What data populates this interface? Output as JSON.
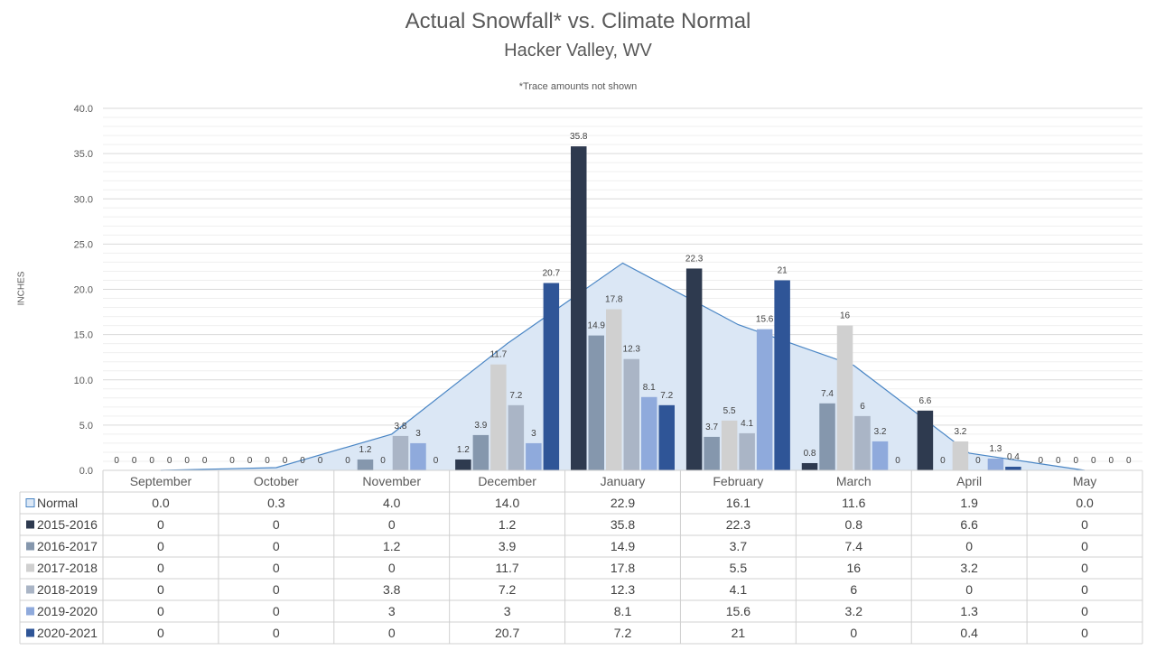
{
  "chart_data": {
    "type": "bar",
    "title": "Actual Snowfall* vs. Climate Normal",
    "subtitle": "Hacker Valley, WV",
    "note": "*Trace amounts not shown",
    "ylabel": "INCHES",
    "ylim": [
      0,
      40
    ],
    "yticks": [
      "0.0",
      "5.0",
      "10.0",
      "15.0",
      "20.0",
      "25.0",
      "30.0",
      "35.0",
      "40.0"
    ],
    "categories": [
      "September",
      "October",
      "November",
      "December",
      "January",
      "February",
      "March",
      "April",
      "May"
    ],
    "normal": {
      "name": "Normal",
      "type": "area",
      "color": "#dbe7f5",
      "line_color": "#4a86c5",
      "values": [
        0.0,
        0.3,
        4.0,
        14.0,
        22.9,
        16.1,
        11.6,
        1.9,
        0.0
      ],
      "labels": [
        "0.0",
        "0.3",
        "4.0",
        "14.0",
        "22.9",
        "16.1",
        "11.6",
        "1.9",
        "0.0"
      ]
    },
    "series": [
      {
        "name": "2015-2016",
        "color": "#2e3a4f",
        "values": [
          0,
          0,
          0,
          1.2,
          35.8,
          22.3,
          0.8,
          6.6,
          0
        ],
        "labels": [
          "0",
          "0",
          "0",
          "1.2",
          "35.8",
          "22.3",
          "0.8",
          "6.6",
          "0"
        ]
      },
      {
        "name": "2016-2017",
        "color": "#8597ad",
        "values": [
          0,
          0,
          1.2,
          3.9,
          14.9,
          3.7,
          7.4,
          0,
          0
        ],
        "labels": [
          "0",
          "0",
          "1.2",
          "3.9",
          "14.9",
          "3.7",
          "7.4",
          "0",
          "0"
        ]
      },
      {
        "name": "2017-2018",
        "color": "#d0d0d0",
        "values": [
          0,
          0,
          0,
          11.7,
          17.8,
          5.5,
          16,
          3.2,
          0
        ],
        "labels": [
          "0",
          "0",
          "0",
          "11.7",
          "17.8",
          "5.5",
          "16",
          "3.2",
          "0"
        ]
      },
      {
        "name": "2018-2019",
        "color": "#aab5c6",
        "values": [
          0,
          0,
          3.8,
          7.2,
          12.3,
          4.1,
          6,
          0,
          0
        ],
        "labels": [
          "0",
          "0",
          "3.8",
          "7.2",
          "12.3",
          "4.1",
          "6",
          "0",
          "0"
        ]
      },
      {
        "name": "2019-2020",
        "color": "#8faadc",
        "values": [
          0,
          0,
          3,
          3,
          8.1,
          15.6,
          3.2,
          1.3,
          0
        ],
        "labels": [
          "0",
          "0",
          "3",
          "3",
          "8.1",
          "15.6",
          "3.2",
          "1.3",
          "0"
        ]
      },
      {
        "name": "2020-2021",
        "color": "#2f5597",
        "values": [
          0,
          0,
          0,
          20.7,
          7.2,
          21,
          0,
          0.4,
          0
        ],
        "labels": [
          "0",
          "0",
          "0",
          "20.7",
          "7.2",
          "21",
          "0",
          "0.4",
          "0"
        ]
      }
    ],
    "grid": true,
    "legend": "data-table"
  }
}
